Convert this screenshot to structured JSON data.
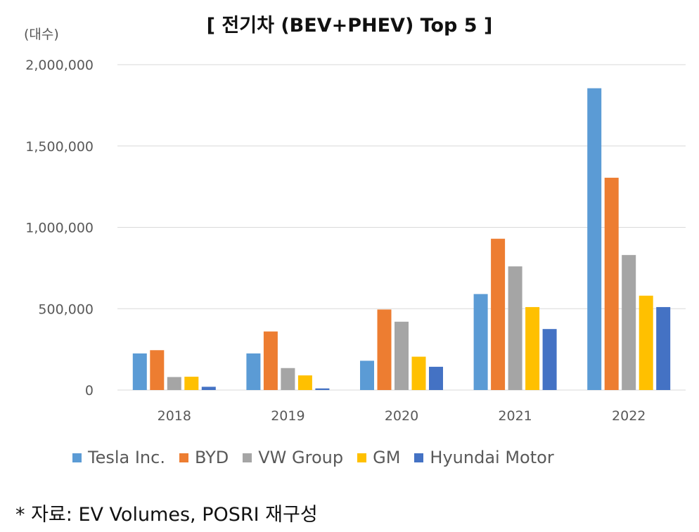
{
  "chart_data": {
    "type": "bar",
    "title": "[ 전기차 (BEV+PHEV) Top 5 ]",
    "ylabel": "(대수)",
    "xlabel": "",
    "categories": [
      "2018",
      "2019",
      "2020",
      "2021",
      "2022"
    ],
    "ylim": [
      0,
      2000000
    ],
    "yticks": [
      0,
      500000,
      1000000,
      1500000,
      2000000
    ],
    "ytick_labels": [
      "0",
      "500,000",
      "1,000,000",
      "1,500,000",
      "2,000,000"
    ],
    "grid": true,
    "legend_position": "bottom",
    "series": [
      {
        "name": "Tesla  Inc.",
        "color": "#5B9BD5",
        "values": [
          225000,
          225000,
          180000,
          590000,
          1855000
        ]
      },
      {
        "name": "BYD",
        "color": "#ED7D31",
        "values": [
          245000,
          360000,
          495000,
          930000,
          1305000
        ]
      },
      {
        "name": "VW Group",
        "color": "#A5A5A5",
        "values": [
          80000,
          135000,
          420000,
          760000,
          830000
        ]
      },
      {
        "name": "GM",
        "color": "#FFC000",
        "values": [
          82000,
          90000,
          205000,
          510000,
          580000
        ]
      },
      {
        "name": "Hyundai Motor",
        "color": "#4472C4",
        "values": [
          20000,
          10000,
          143000,
          375000,
          510000
        ]
      }
    ]
  },
  "source": "* 자료: EV Volumes, POSRI 재구성"
}
